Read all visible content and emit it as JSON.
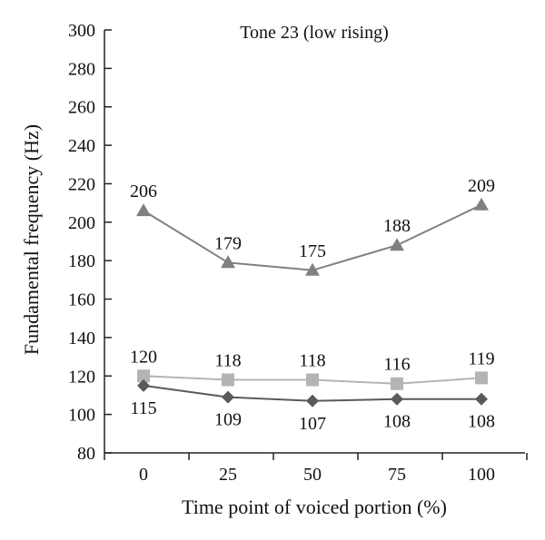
{
  "chart_data": {
    "type": "line",
    "title": "Tone 23 (low rising)",
    "xlabel": "Time point of voiced portion (%)",
    "ylabel": "Fundamental frequency (Hz)",
    "x": [
      0,
      25,
      50,
      75,
      100
    ],
    "x_tick_labels": [
      "0",
      "25",
      "50",
      "75",
      "100"
    ],
    "ylim": [
      80,
      300
    ],
    "y_ticks": [
      80,
      100,
      120,
      140,
      160,
      180,
      200,
      220,
      240,
      260,
      280,
      300
    ],
    "grid": false,
    "series": [
      {
        "marker": "triangle",
        "color": "#808080",
        "values": [
          206,
          179,
          175,
          188,
          209
        ],
        "label_position": "above"
      },
      {
        "marker": "square",
        "color": "#b4b4b4",
        "values": [
          120,
          118,
          118,
          116,
          119
        ],
        "label_position": "above"
      },
      {
        "marker": "diamond",
        "color": "#5a5a5a",
        "values": [
          115,
          109,
          107,
          108,
          108
        ],
        "label_position": "below"
      }
    ]
  }
}
